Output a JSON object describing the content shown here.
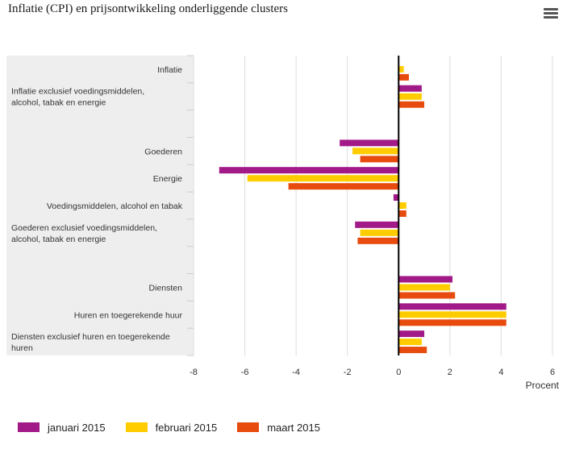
{
  "title": "Inflatie (CPI) en prijsontwikkeling onderliggende clusters",
  "menu": {
    "icon": "hamburger-menu-icon"
  },
  "chart_data": {
    "type": "bar",
    "orientation": "horizontal",
    "title": "Inflatie (CPI) en prijsontwikkeling onderliggende clusters",
    "xlabel": "Procent",
    "ylabel": "",
    "xlim": [
      -8,
      6
    ],
    "x_ticks": [
      -8,
      -6,
      -4,
      -2,
      0,
      2,
      4,
      6
    ],
    "grid": true,
    "legend_position": "bottom",
    "categories": [
      [
        "Inflatie"
      ],
      [
        "Inflatie exclusief voedingsmiddelen,",
        "alcohol, tabak en energie"
      ],
      [
        ""
      ],
      [
        "Goederen"
      ],
      [
        "Energie"
      ],
      [
        "Voedingsmiddelen, alcohol en tabak"
      ],
      [
        "Goederen exclusief voedingsmiddelen,",
        "alcohol, tabak en energie"
      ],
      [
        ""
      ],
      [
        "Diensten"
      ],
      [
        "Huren en toegerekende huur"
      ],
      [
        "Diensten exclusief huren en toegerekende",
        "huren"
      ]
    ],
    "series": [
      {
        "name": "januari 2015",
        "color": "#a21a87",
        "values": [
          0.0,
          0.9,
          null,
          -2.3,
          -7.0,
          -0.2,
          -1.7,
          null,
          2.1,
          4.2,
          1.0
        ]
      },
      {
        "name": "februari 2015",
        "color": "#ffcc00",
        "values": [
          0.2,
          0.9,
          null,
          -1.8,
          -5.9,
          0.3,
          -1.5,
          null,
          2.0,
          4.2,
          0.9
        ]
      },
      {
        "name": "maart 2015",
        "color": "#e74c0e",
        "values": [
          0.4,
          1.0,
          null,
          -1.5,
          -4.3,
          0.3,
          -1.6,
          null,
          2.2,
          4.2,
          1.1
        ]
      }
    ]
  },
  "legend": {
    "items": [
      {
        "label": "januari 2015",
        "color": "#a21a87"
      },
      {
        "label": "februari 2015",
        "color": "#ffcc00"
      },
      {
        "label": "maart 2015",
        "color": "#e74c0e"
      }
    ]
  }
}
